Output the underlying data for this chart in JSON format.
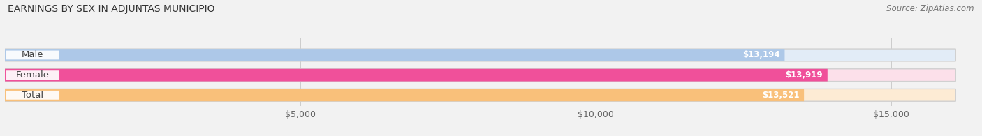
{
  "title": "EARNINGS BY SEX IN ADJUNTAS MUNICIPIO",
  "source": "Source: ZipAtlas.com",
  "categories": [
    "Male",
    "Female",
    "Total"
  ],
  "values": [
    13194,
    13919,
    13521
  ],
  "bar_colors": [
    "#adc8e8",
    "#f0509a",
    "#f9c07a"
  ],
  "bar_bg_colors": [
    "#e2ecf7",
    "#fce0ea",
    "#fdebd4"
  ],
  "value_labels": [
    "$13,194",
    "$13,919",
    "$13,521"
  ],
  "x_ticks": [
    5000,
    10000,
    15000
  ],
  "x_tick_labels": [
    "$5,000",
    "$10,000",
    "$15,000"
  ],
  "xlim_max": 16500,
  "title_fontsize": 10,
  "source_fontsize": 8.5,
  "label_fontsize": 9.5,
  "value_fontsize": 8.5,
  "tick_fontsize": 9,
  "background_color": "#f2f2f2",
  "bar_background_color": "#e0e0e0",
  "grid_color": "#cccccc"
}
